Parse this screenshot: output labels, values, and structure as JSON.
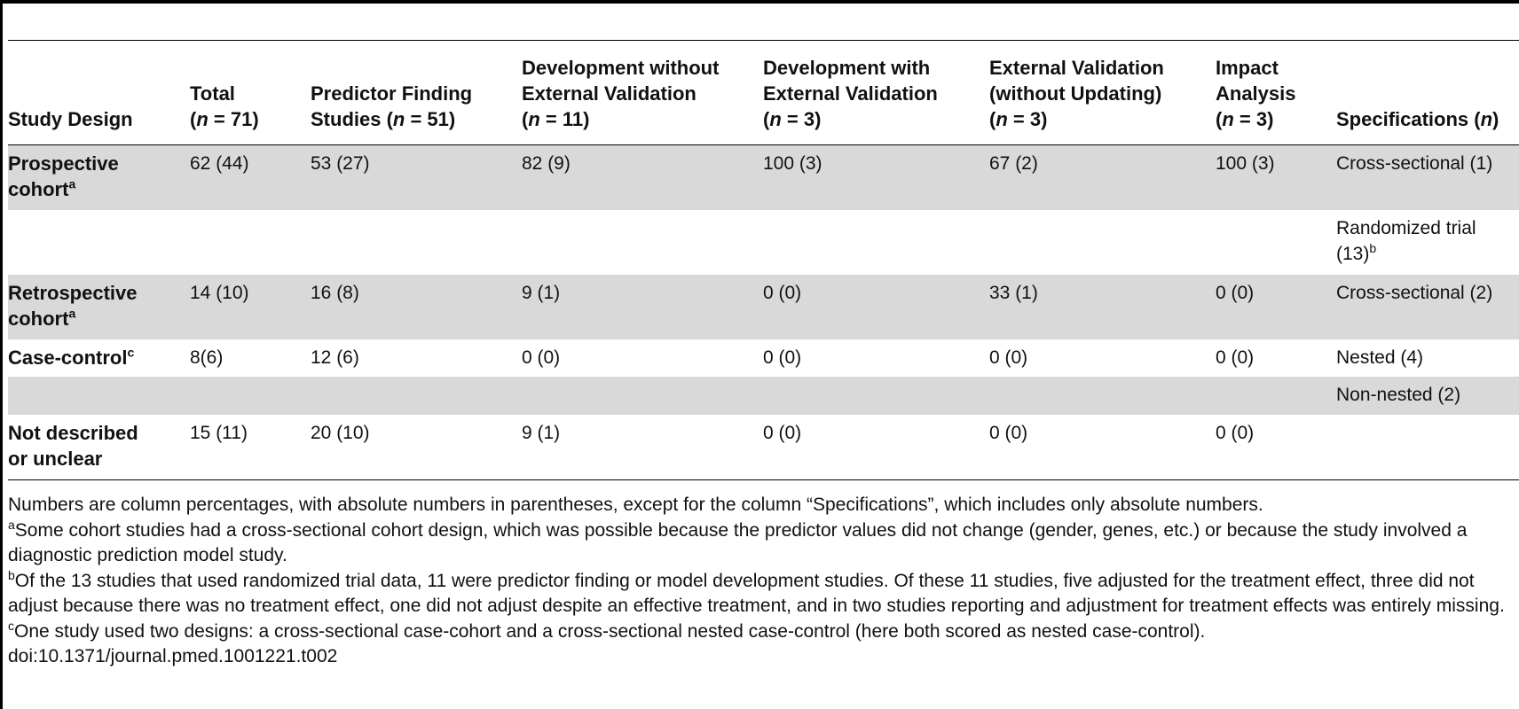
{
  "table": {
    "headers": [
      {
        "lines": [
          "",
          "",
          "Study Design"
        ]
      },
      {
        "lines": [
          "",
          "Total",
          "(n = 71)"
        ]
      },
      {
        "lines": [
          "",
          "Predictor Finding",
          "Studies (n = 51)"
        ]
      },
      {
        "lines": [
          "Development without",
          "External Validation",
          "(n = 11)"
        ]
      },
      {
        "lines": [
          "Development with",
          "External Validation",
          "(n = 3)"
        ]
      },
      {
        "lines": [
          "External Validation",
          "(without Updating)",
          "(n = 3)"
        ]
      },
      {
        "lines": [
          "Impact",
          "Analysis",
          "(n = 3)"
        ]
      },
      {
        "lines": [
          "",
          "",
          "Specifications (n)"
        ]
      }
    ],
    "rows": [
      {
        "design": [
          "Prospective",
          "cohort"
        ],
        "sup": "a",
        "cells": [
          "62 (44)",
          "53 (27)",
          "82 (9)",
          "100 (3)",
          "67 (2)",
          "100 (3)"
        ],
        "spec": [
          "Cross-sectional (1)"
        ],
        "spec_sup": ""
      },
      {
        "design": [
          "",
          ""
        ],
        "sup": "",
        "cells": [
          "",
          "",
          "",
          "",
          "",
          ""
        ],
        "spec": [
          "Randomized trial",
          "(13)"
        ],
        "spec_sup": "b"
      },
      {
        "design": [
          "Retrospective",
          "cohort"
        ],
        "sup": "a",
        "cells": [
          "14 (10)",
          "16 (8)",
          "9 (1)",
          "0 (0)",
          "33 (1)",
          "0 (0)"
        ],
        "spec": [
          "Cross-sectional (2)"
        ],
        "spec_sup": ""
      },
      {
        "design": [
          "Case-control"
        ],
        "sup": "c",
        "cells": [
          "8(6)",
          "12 (6)",
          "0 (0)",
          "0 (0)",
          "0 (0)",
          "0 (0)"
        ],
        "spec": [
          "Nested (4)"
        ],
        "spec_sup": ""
      },
      {
        "design": [
          ""
        ],
        "sup": "",
        "cells": [
          "",
          "",
          "",
          "",
          "",
          ""
        ],
        "spec": [
          "Non-nested (2)"
        ],
        "spec_sup": ""
      },
      {
        "design": [
          "Not described",
          "or unclear"
        ],
        "sup": "",
        "cells": [
          "15 (11)",
          "20 (10)",
          "9 (1)",
          "0 (0)",
          "0 (0)",
          "0 (0)"
        ],
        "spec": [
          ""
        ],
        "spec_sup": ""
      }
    ]
  },
  "notes": {
    "main": "Numbers are column percentages, with absolute numbers in parentheses, except for the column “Specifications”, which includes only absolute numbers.",
    "a_mark": "a",
    "a": "Some cohort studies had a cross-sectional cohort design, which was possible because the predictor values did not change (gender, genes, etc.) or because the study involved a diagnostic prediction model study.",
    "b_mark": "b",
    "b": "Of the 13 studies that used randomized trial data, 11 were predictor finding or model development studies. Of these 11 studies, five adjusted for the treatment effect, three did not adjust because there was no treatment effect, one did not adjust despite an effective treatment, and in two studies reporting and adjustment for treatment effects was entirely missing.",
    "c_mark": "c",
    "c": "One study used two designs: a cross-sectional case-cohort and a cross-sectional nested case-control (here both scored as nested case-control).",
    "doi": "doi:10.1371/journal.pmed.1001221.t002"
  }
}
